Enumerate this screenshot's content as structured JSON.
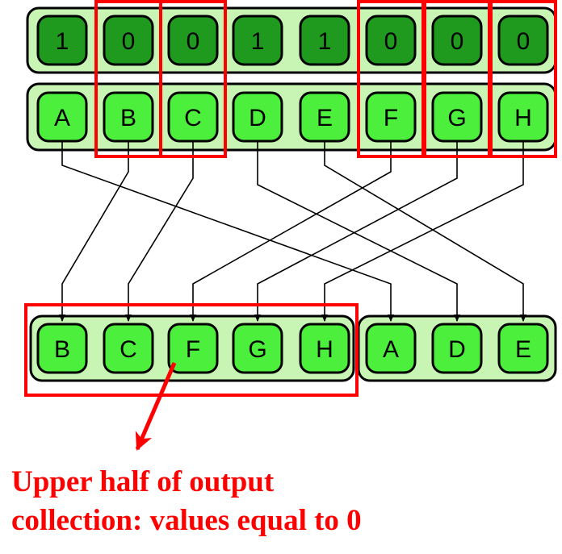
{
  "bits": [
    "1",
    "0",
    "0",
    "1",
    "1",
    "0",
    "0",
    "0"
  ],
  "inputs": [
    "A",
    "B",
    "C",
    "D",
    "E",
    "F",
    "G",
    "H"
  ],
  "outputs": [
    "B",
    "C",
    "F",
    "G",
    "H",
    "A",
    "D",
    "E"
  ],
  "highlighted_columns": [
    "B",
    "C",
    "F",
    "G",
    "H"
  ],
  "caption": {
    "line1": "Upper half of output",
    "line2": "collection: values equal to 0"
  },
  "colors": {
    "bit_cell_fill": "#1f9a1f",
    "bit_row_fill": "#c8f5b4",
    "letter_cell_fill": "#4cf03c",
    "letter_row_fill": "#c8f5b4",
    "highlight": "#ff0000",
    "outline": "#000000"
  }
}
